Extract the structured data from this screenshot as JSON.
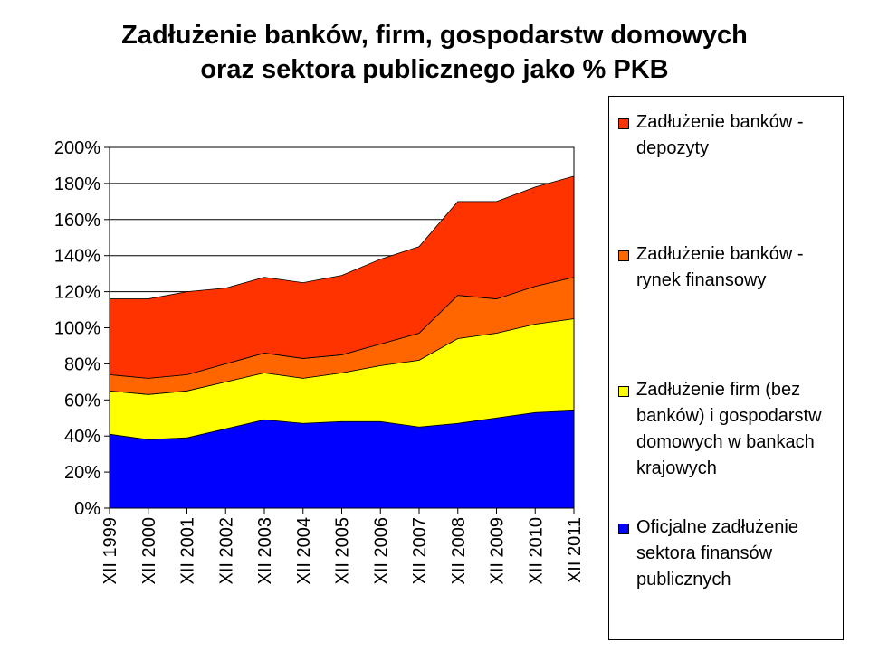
{
  "title": {
    "line1": "Zadłużenie  banków, firm, gospodarstw domowych",
    "line2": "oraz sektora publicznego  jako % PKB"
  },
  "chart_data": {
    "type": "area",
    "stacked": true,
    "categories": [
      "XII 1999",
      "XII 2000",
      "XII 2001",
      "XII 2002",
      "XII 2003",
      "XII 2004",
      "XII 2005",
      "XII 2006",
      "XII 2007",
      "XII 2008",
      "XII 2009",
      "XII 2010",
      "XII 2011"
    ],
    "ylim": [
      0,
      200
    ],
    "yticks": [
      "0%",
      "20%",
      "40%",
      "60%",
      "80%",
      "100%",
      "120%",
      "140%",
      "160%",
      "180%",
      "200%"
    ],
    "grid": true,
    "legend_position": "right",
    "series": [
      {
        "name": "Oficjalne zadłużenie sektora finansów publicznych",
        "color": "#0000ff",
        "values": [
          41,
          38,
          39,
          44,
          49,
          47,
          48,
          48,
          45,
          47,
          50,
          53,
          54
        ]
      },
      {
        "name": "Zadłużenie firm (bez banków) i gospodarstw domowych w bankach krajowych",
        "color": "#ffff00",
        "values": [
          24,
          25,
          26,
          26,
          26,
          25,
          27,
          31,
          37,
          47,
          47,
          49,
          51
        ]
      },
      {
        "name": "Zadłużenie banków - rynek finansowy",
        "color": "#ff6600",
        "values": [
          9,
          9,
          9,
          10,
          11,
          11,
          10,
          12,
          15,
          24,
          19,
          21,
          23
        ]
      },
      {
        "name": "Zadłużenie banków - depozyty",
        "color": "#ff3300",
        "values": [
          42,
          44,
          46,
          42,
          42,
          42,
          44,
          47,
          48,
          52,
          54,
          55,
          56
        ]
      }
    ]
  },
  "legend": {
    "items": [
      {
        "label": "Zadłużenie banków - depozyty",
        "color": "#ff3300"
      },
      {
        "label": "Zadłużenie banków - rynek finansowy",
        "color": "#ff6600"
      },
      {
        "label": "Zadłużenie firm (bez banków) i gospodarstw domowych w bankach krajowych",
        "color": "#ffff00"
      },
      {
        "label": "Oficjalne zadłużenie sektora finansów publicznych",
        "color": "#0000ff"
      }
    ]
  }
}
